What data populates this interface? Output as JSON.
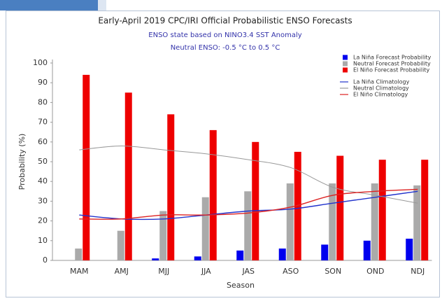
{
  "chart_data": {
    "type": "bar",
    "title": "Early-April 2019 CPC/IRI Official Probabilistic ENSO Forecasts",
    "subtitle": [
      "ENSO state based on NINO3.4 SST Anomaly",
      "Neutral ENSO: -0.5 °C to 0.5 °C"
    ],
    "x_label": "Season",
    "y_label": "Probability (%)",
    "categories": [
      "MAM",
      "AMJ",
      "MJJ",
      "JJA",
      "JAS",
      "ASO",
      "SON",
      "OND",
      "NDJ"
    ],
    "series": [
      {
        "name": "La Niña Forecast Probability",
        "color": "#0000ee",
        "kind": "bar",
        "values": [
          0,
          0,
          1,
          2,
          5,
          6,
          8,
          10,
          11
        ]
      },
      {
        "name": "Neutral Forecast Probability",
        "color": "#aaaaaa",
        "kind": "bar",
        "values": [
          6,
          15,
          25,
          32,
          35,
          39,
          39,
          39,
          38
        ]
      },
      {
        "name": "El Niño Forecast Probability",
        "color": "#ee0000",
        "kind": "bar",
        "values": [
          94,
          85,
          74,
          66,
          60,
          55,
          53,
          51,
          51
        ]
      },
      {
        "name": "La Niña Climatology",
        "color": "#2233cc",
        "kind": "line",
        "values": [
          23,
          21,
          21,
          23,
          25,
          26,
          29,
          32,
          35
        ]
      },
      {
        "name": "Neutral Climatology",
        "color": "#999999",
        "kind": "line",
        "values": [
          56,
          58,
          56,
          54,
          51,
          47,
          37,
          33,
          29
        ]
      },
      {
        "name": "El Niño Climatology",
        "color": "#dd2222",
        "kind": "line",
        "values": [
          21,
          21,
          23,
          23,
          24,
          27,
          33,
          35,
          36
        ]
      }
    ],
    "ylim": [
      0,
      100
    ],
    "yticks": [
      0,
      10,
      20,
      30,
      40,
      50,
      60,
      70,
      80,
      90,
      100
    ],
    "legend": "upper right"
  }
}
